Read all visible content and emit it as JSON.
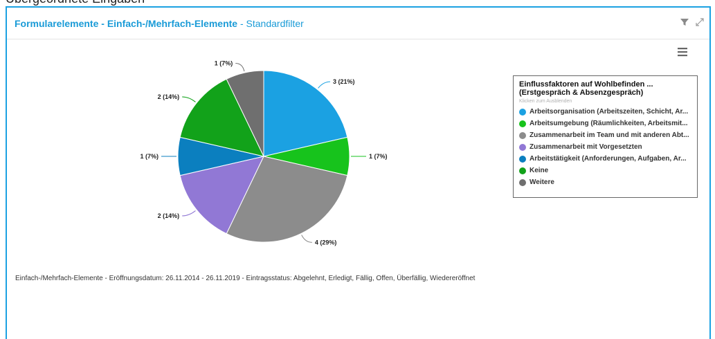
{
  "top_fragment": "Übergeordnete Eingaben",
  "panel": {
    "title_main": "Formularelemente - Einfach-/Mehrfach-Elemente",
    "title_separator": " - ",
    "title_sub": "Standardfilter"
  },
  "icons": {
    "filter": "filter-icon",
    "expand": "expand-icon",
    "menu": "hamburger-menu-icon"
  },
  "legend": {
    "title_line1": "Einflussfaktoren auf Wohlbefinden ...",
    "title_line2": "(Erstgespräch & Absenzgespräch)",
    "hint": "Klicken zum Ausblenden"
  },
  "chart_data": {
    "type": "pie",
    "categories": [
      "Arbeitsorganisation (Arbeitszeiten, Schicht, Ar...",
      "Arbeitsumgebung (Räumlichkeiten, Arbeitsmit...",
      "Zusammenarbeit im Team und mit anderen Abt...",
      "Zusammenarbeit mit Vorgesetzten",
      "Arbeitstätigkeit (Anforderungen, Aufgaben, Ar...",
      "Keine",
      "Weitere"
    ],
    "values": [
      3,
      1,
      4,
      2,
      1,
      2,
      1
    ],
    "data_labels": [
      "3 (21%)",
      "1 (7%)",
      "4 (29%)",
      "2 (14%)",
      "1 (7%)",
      "2 (14%)",
      "1 (7%)"
    ],
    "colors": [
      "#1ba1e2",
      "#17c31c",
      "#8c8c8c",
      "#9178d5",
      "#0b7fbf",
      "#12a21a",
      "#6f6f6f"
    ],
    "start_angle": "12 o'clock",
    "direction": "clockwise",
    "legend_position": "right"
  },
  "footer": {
    "text": "Einfach-/Mehrfach-Elemente - Eröffnungsdatum: 26.11.2014 - 26.11.2019 - Eintragsstatus: Abgelehnt, Erledigt, Fällig, Offen, Überfällig, Wiedereröffnet"
  }
}
